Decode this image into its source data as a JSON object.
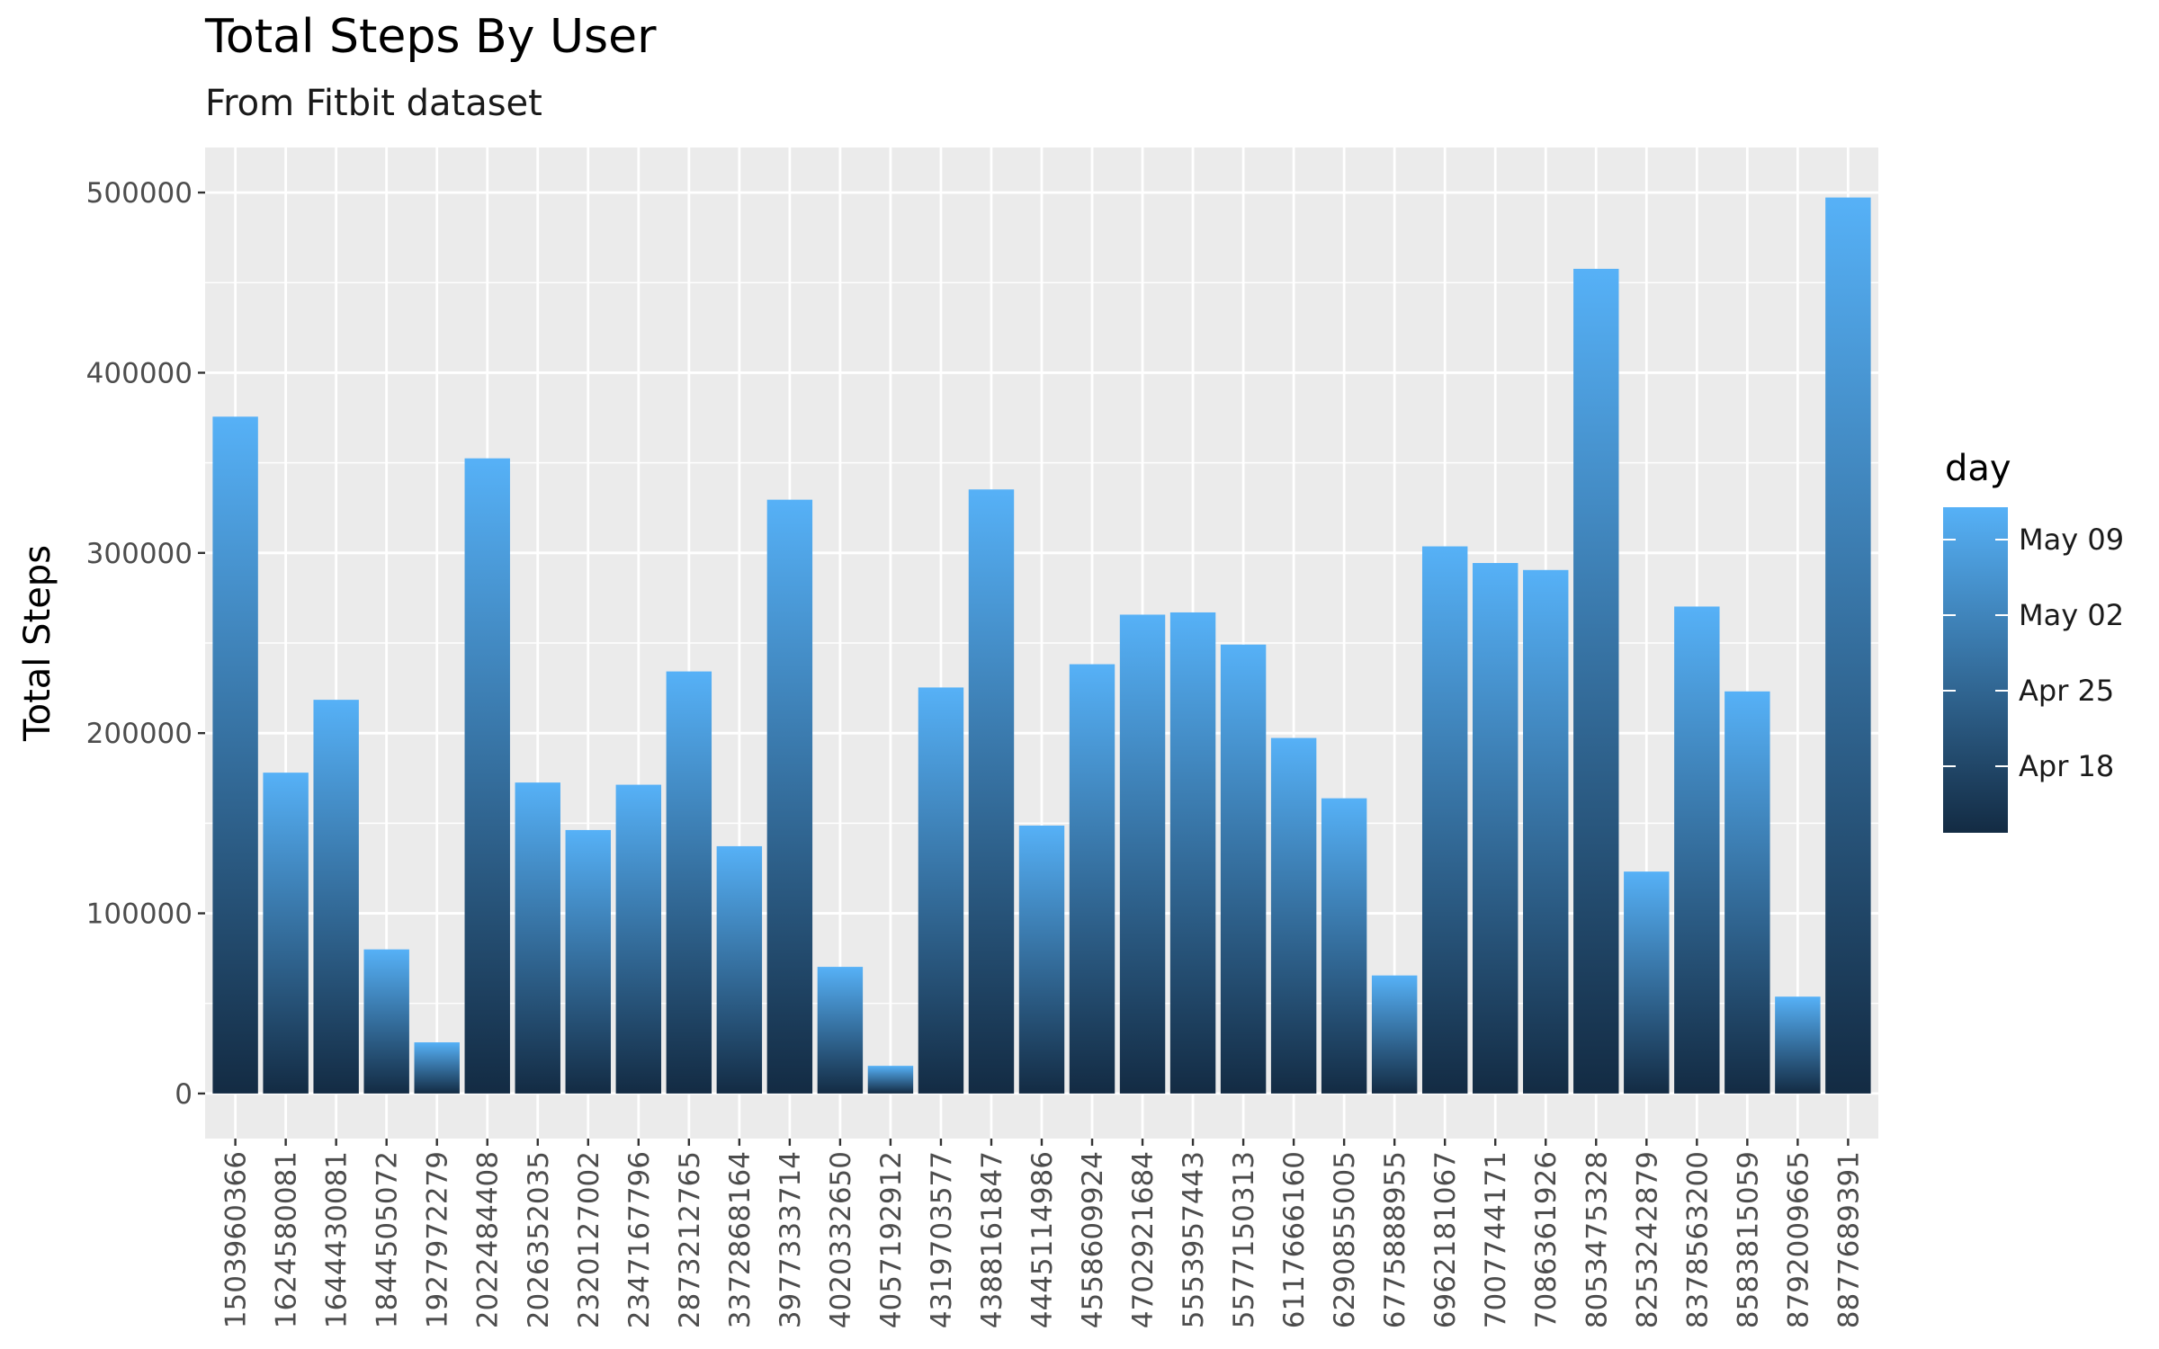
{
  "chart_data": {
    "type": "bar",
    "title": "Total Steps By User",
    "subtitle": "From Fitbit dataset",
    "xlabel": "",
    "ylabel": "Total Steps",
    "ylim": [
      -25000,
      525000
    ],
    "yticks": [
      0,
      100000,
      200000,
      300000,
      400000,
      500000
    ],
    "yticklabels": [
      "0",
      "100000",
      "200000",
      "300000",
      "400000",
      "500000"
    ],
    "grid": true,
    "categories": [
      "1503960366",
      "1624580081",
      "1644430081",
      "1844505072",
      "1927972279",
      "2022484408",
      "2026352035",
      "2320127002",
      "2347167796",
      "2873212765",
      "3372868164",
      "3977333714",
      "4020332650",
      "4057192912",
      "4319703577",
      "4388161847",
      "4445114986",
      "4558609924",
      "4702921684",
      "5553957443",
      "5577150313",
      "6117666160",
      "6290855005",
      "6775888955",
      "6962181067",
      "7007744171",
      "7086361926",
      "8053475328",
      "8253242879",
      "8378563200",
      "8583815059",
      "8792009665",
      "8877689391"
    ],
    "values": [
      375619,
      178061,
      218489,
      79982,
      28400,
      352490,
      172573,
      146223,
      171354,
      234229,
      137233,
      329537,
      70284,
      15352,
      225334,
      335232,
      148693,
      238239,
      265734,
      266990,
      249133,
      197308,
      163837,
      65512,
      303639,
      294409,
      290525,
      457662,
      123161,
      270249,
      223154,
      53758,
      497241
    ],
    "legend": {
      "title": "day",
      "position": "right",
      "labels": [
        "May 09",
        "May 02",
        "Apr 25",
        "Apr 18"
      ],
      "color_low": "#132B43",
      "color_high": "#56B1F7"
    }
  }
}
